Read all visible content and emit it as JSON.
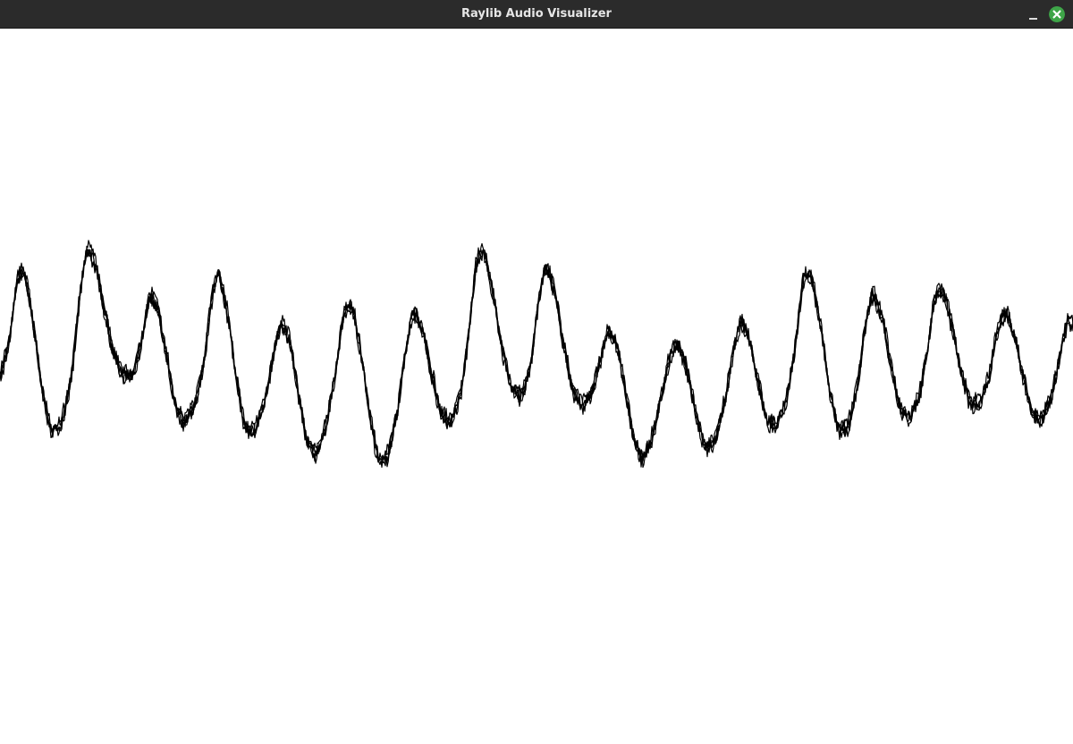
{
  "window": {
    "title": "Raylib Audio Visualizer",
    "controls": {
      "minimize_icon": "minimize-icon",
      "close_icon": "close-icon"
    },
    "colors": {
      "titlebar": "#2b2b2b",
      "title_text": "#e6e6e6",
      "close_button": "#3ea548",
      "canvas_background": "#ffffff",
      "waveform": "#000000"
    }
  }
}
